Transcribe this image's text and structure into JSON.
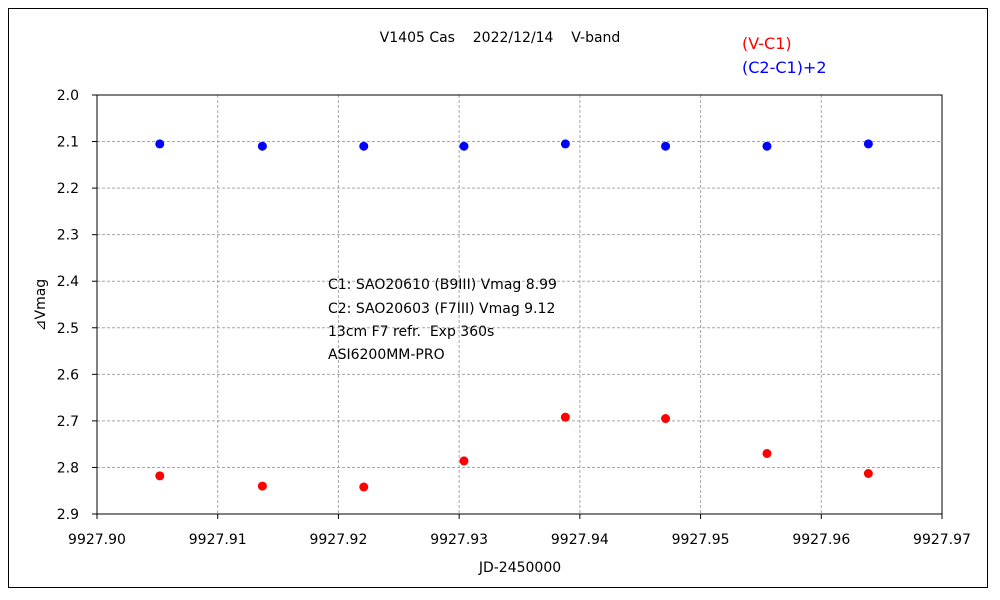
{
  "chart_data": {
    "type": "scatter",
    "title": "V1405 Cas    2022/12/14    V-band",
    "xlabel": "JD-2450000",
    "ylabel": "⊿Vmag",
    "xlim": [
      9927.9,
      9927.97
    ],
    "ylim": [
      2.0,
      2.9
    ],
    "y_inverted": true,
    "grid": true,
    "x_ticks": [
      "9927.90",
      "9927.91",
      "9927.92",
      "9927.93",
      "9927.94",
      "9927.95",
      "9927.96",
      "9927.97"
    ],
    "y_ticks": [
      "2.0",
      "2.1",
      "2.2",
      "2.3",
      "2.4",
      "2.5",
      "2.6",
      "2.7",
      "2.8",
      "2.9"
    ],
    "legend_placement": "top-right",
    "annotations": [
      "C1: SAO20610 (B9III) Vmag 8.99",
      "C2: SAO20603 (F7III) Vmag 9.12",
      "13cm F7 refr.  Exp 360s",
      "ASI6200MM-PRO"
    ],
    "series": [
      {
        "name": "(V-C1)",
        "color": "#ff0000",
        "x": [
          9927.9052,
          9927.9137,
          9927.9221,
          9927.9304,
          9927.9388,
          9927.9471,
          9927.9555,
          9927.9639
        ],
        "y": [
          2.818,
          2.84,
          2.842,
          2.786,
          2.692,
          2.695,
          2.77,
          2.813
        ]
      },
      {
        "name": "(C2-C1)+2",
        "color": "#0000ff",
        "x": [
          9927.9052,
          9927.9137,
          9927.9221,
          9927.9304,
          9927.9388,
          9927.9471,
          9927.9555,
          9927.9639
        ],
        "y": [
          2.105,
          2.11,
          2.11,
          2.11,
          2.105,
          2.11,
          2.11,
          2.105
        ]
      }
    ]
  }
}
